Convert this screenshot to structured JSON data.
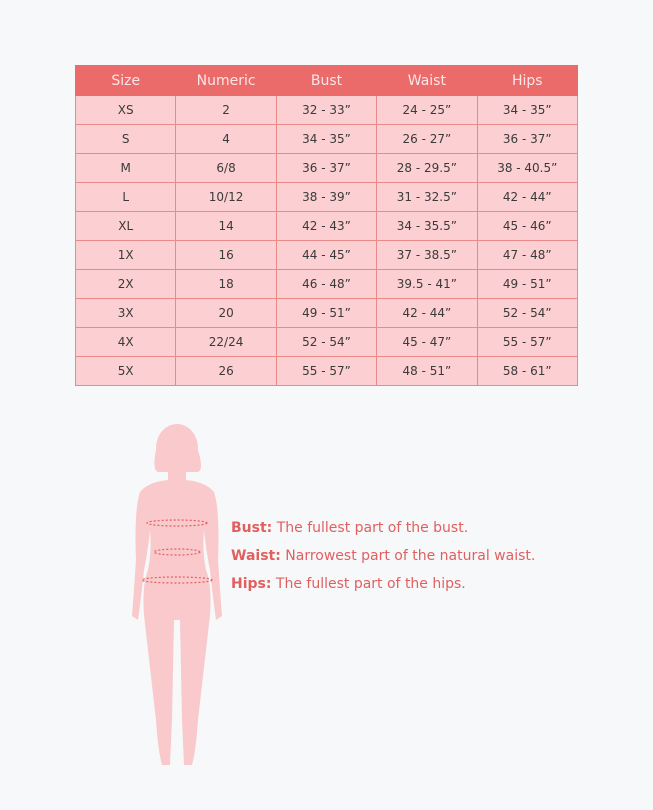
{
  "table": {
    "headers": [
      "Size",
      "Numeric",
      "Bust",
      "Waist",
      "Hips"
    ],
    "rows": [
      [
        "XS",
        "2",
        "32  -  33”",
        "24 - 25”",
        "34 - 35”"
      ],
      [
        "S",
        "4",
        "34 - 35”",
        "26 - 27”",
        "36 - 37”"
      ],
      [
        "M",
        "6/8",
        "36 - 37”",
        "28 - 29.5”",
        "38 - 40.5”"
      ],
      [
        "L",
        "10/12",
        "38 - 39”",
        "31 - 32.5”",
        "42 - 44”"
      ],
      [
        "XL",
        "14",
        "42 - 43”",
        "34 - 35.5”",
        "45 - 46”"
      ],
      [
        "1X",
        "16",
        "44 - 45”",
        "37 - 38.5”",
        "47 - 48”"
      ],
      [
        "2X",
        "18",
        "46 - 48”",
        "39.5 - 41”",
        "49 - 51”"
      ],
      [
        "3X",
        "20",
        "49 - 51”",
        "42 - 44”",
        "52 - 54”"
      ],
      [
        "4X",
        "22/24",
        "52 - 54”",
        "45 - 47”",
        "55 - 57”"
      ],
      [
        "5X",
        "26",
        "55 - 57”",
        "48 - 51”",
        "58 - 61”"
      ]
    ]
  },
  "legend": [
    {
      "term": "Bust:",
      "desc": " The fullest part of the bust."
    },
    {
      "term": "Waist:",
      "desc": " Narrowest part of the natural waist."
    },
    {
      "term": "Hips:",
      "desc": " The fullest part of the hips."
    }
  ],
  "colors": {
    "header": "#ea6b69",
    "cell": "#fcd0d2",
    "accent": "#e0605f",
    "figure": "#f9c9cb"
  }
}
